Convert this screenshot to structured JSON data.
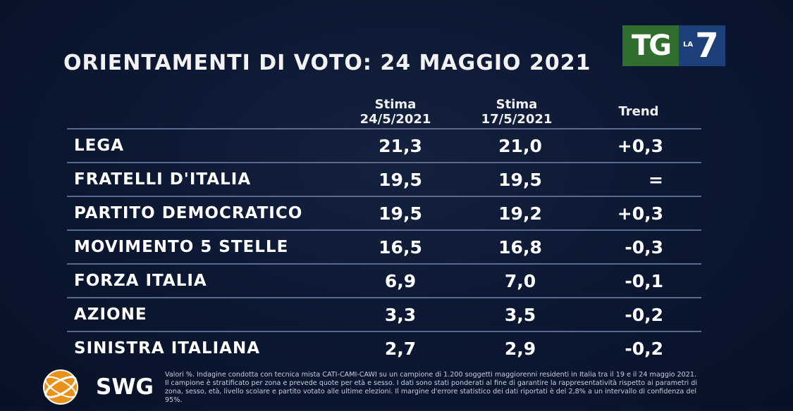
{
  "title": "ORIENTAMENTI DI VOTO: 24 MAGGIO 2021",
  "logo": {
    "tg": "TG",
    "la": "LA",
    "seven": "7"
  },
  "columns": {
    "c1_line1": "Stima",
    "c1_line2": "24/5/2021",
    "c2_line1": "Stima",
    "c2_line2": "17/5/2021",
    "c3": "Trend"
  },
  "rows": [
    {
      "party": "LEGA",
      "v1": "21,3",
      "v2": "21,0",
      "trend": "+0,3"
    },
    {
      "party": "FRATELLI D'ITALIA",
      "v1": "19,5",
      "v2": "19,5",
      "trend": "="
    },
    {
      "party": "PARTITO DEMOCRATICO",
      "v1": "19,5",
      "v2": "19,2",
      "trend": "+0,3"
    },
    {
      "party": "MOVIMENTO 5 STELLE",
      "v1": "16,5",
      "v2": "16,8",
      "trend": "-0,3"
    },
    {
      "party": "FORZA ITALIA",
      "v1": "6,9",
      "v2": "7,0",
      "trend": "-0,1"
    },
    {
      "party": "AZIONE",
      "v1": "3,3",
      "v2": "3,5",
      "trend": "-0,2"
    },
    {
      "party": "SINISTRA ITALIANA",
      "v1": "2,7",
      "v2": "2,9",
      "trend": "-0,2"
    }
  ],
  "source": {
    "name": "SWG"
  },
  "note": "Valori %. Indagine condotta con tecnica mista CATI-CAMI-CAWI su un campione di 1.200 soggetti maggiorenni residenti in Italia tra il 19 e il 24 maggio 2021. Il campione è stratificato per zona e prevede quote per età e sesso. I dati sono stati ponderati al fine di garantire la rappresentatività rispetto ai parametri di zona, sesso, età, livello scolare e partito votato alle ultime elezioni. Il margine d'errore statistico dei dati riportati è del 2,8% a un intervallo di confidenza del 95%."
}
